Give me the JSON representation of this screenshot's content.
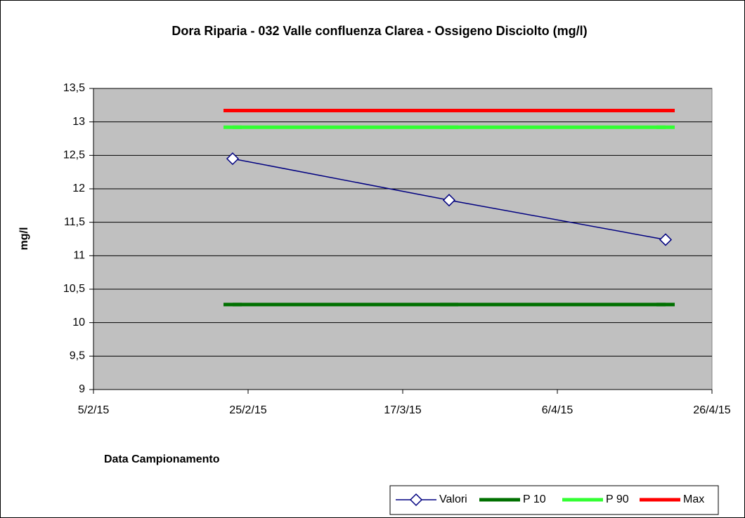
{
  "chart_data": {
    "type": "line",
    "title": "Dora Riparia - 032 Valle confluenza Clarea  - Ossigeno Disciolto (mg/l)",
    "x_label": "Data Campionamento",
    "y_label": "mg/l",
    "x": [
      "23/2/15",
      "23/3/15",
      "20/4/15"
    ],
    "series": [
      {
        "name": "Valori",
        "color": "#000080",
        "values": [
          12.45,
          11.83,
          11.24
        ]
      },
      {
        "name": "P 10",
        "color": "#007000",
        "values": [
          10.27,
          10.27,
          10.27
        ]
      },
      {
        "name": "P 90",
        "color": "#33ff33",
        "values": [
          12.92,
          12.92,
          12.92
        ]
      },
      {
        "name": "Max",
        "color": "#ff0000",
        "values": [
          13.17,
          13.17,
          13.17
        ]
      }
    ],
    "xlim": [
      "5/2/15",
      "26/4/15"
    ],
    "xticks": [
      "5/2/15",
      "25/2/15",
      "17/3/15",
      "6/4/15",
      "26/4/15"
    ],
    "ylim": [
      9,
      13.5
    ],
    "yticks": [
      9,
      {
        "value": 9.5,
        "label": "9,5"
      },
      10,
      {
        "value": 10.5,
        "label": "10,5"
      },
      11,
      {
        "value": 11.5,
        "label": "11,5"
      },
      12,
      {
        "value": 12.5,
        "label": "12,5"
      },
      13,
      {
        "value": 13.5,
        "label": "13,5"
      }
    ],
    "grid": true,
    "legend": "bottom-right",
    "plot_background": "#c0c0c0"
  }
}
